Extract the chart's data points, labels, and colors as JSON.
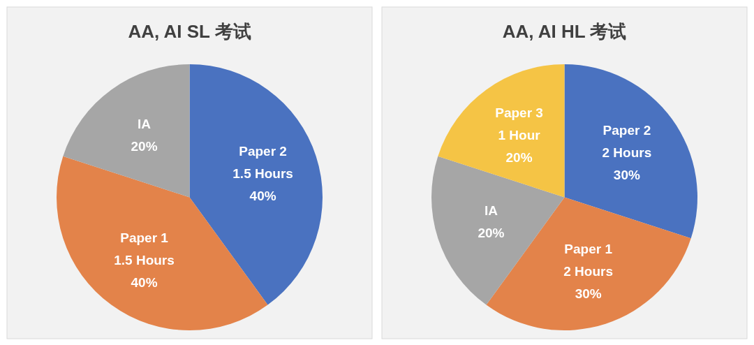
{
  "chart_data": [
    {
      "type": "pie",
      "title": "AA, AI SL 考试",
      "categories": [
        "Paper 2\n1.5 Hours",
        "Paper 1\n1.5 Hours",
        "IA"
      ],
      "values": [
        40,
        40,
        20
      ],
      "value_labels": [
        "40%",
        "40%",
        "20%"
      ],
      "colors": [
        "#4a72c0",
        "#e3834a",
        "#a6a6a6"
      ]
    },
    {
      "type": "pie",
      "title": "AA, AI HL 考试",
      "categories": [
        "Paper 2\n2 Hours",
        "Paper 1\n2 Hours",
        "IA",
        "Paper 3\n1 Hour"
      ],
      "values": [
        30,
        30,
        20,
        20
      ],
      "value_labels": [
        "30%",
        "30%",
        "20%",
        "20%"
      ],
      "colors": [
        "#4a72c0",
        "#e3834a",
        "#a6a6a6",
        "#f5c445"
      ]
    }
  ]
}
